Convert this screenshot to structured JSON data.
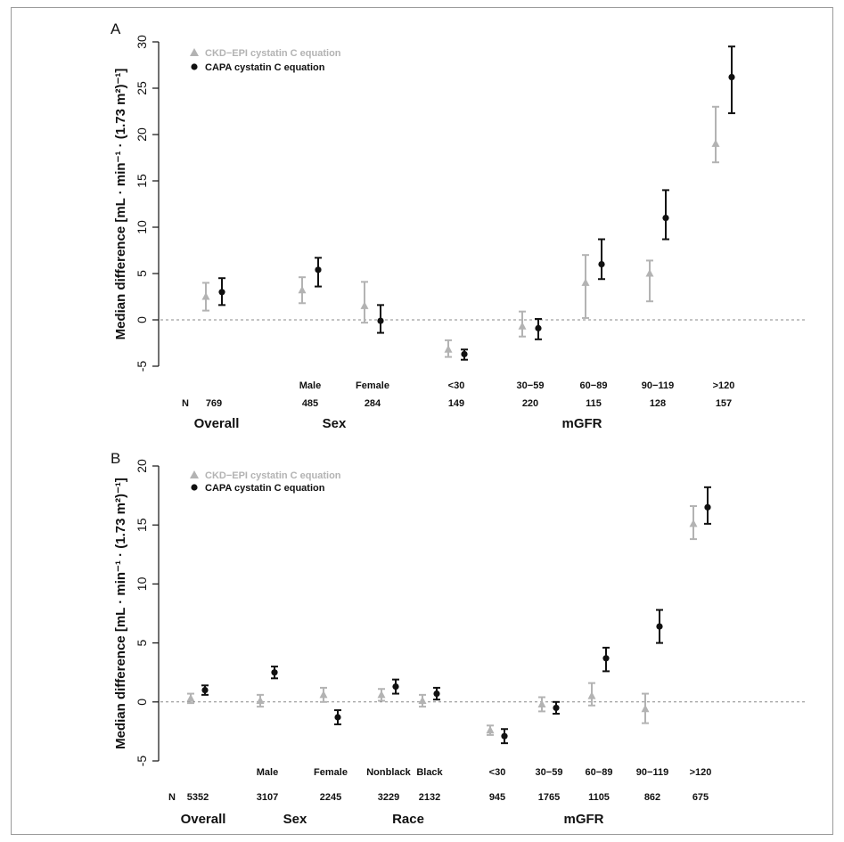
{
  "figure": {
    "colors": {
      "ckd": "#b3b3b3",
      "capa": "#111111",
      "refline": "#888888"
    }
  },
  "chart_data": [
    {
      "type": "scatter",
      "panel": "A",
      "ylabel": "Median difference [mL · min⁻¹ · (1.73 m²)⁻¹]",
      "ylim": [
        -5,
        30
      ],
      "yticks": [
        -5,
        0,
        5,
        10,
        15,
        20,
        25,
        30
      ],
      "reference_line": 0,
      "legend": {
        "placement": "top-left",
        "entries": [
          "CKD−EPI cystatin C equation",
          "CAPA cystatin C equation"
        ]
      },
      "n_prefix": "N",
      "categories": [
        {
          "label": "",
          "n": "769"
        },
        {
          "label": "Male",
          "n": "485"
        },
        {
          "label": "Female",
          "n": "284"
        },
        {
          "label": "<30",
          "n": "149"
        },
        {
          "label": "30−59",
          "n": "220"
        },
        {
          "label": "60−89",
          "n": "115"
        },
        {
          "label": "90−119",
          "n": "128"
        },
        {
          "label": ">120",
          "n": "157"
        }
      ],
      "groups": [
        {
          "label": "Overall",
          "from": 0,
          "to": 0
        },
        {
          "label": "Sex",
          "from": 1,
          "to": 2
        },
        {
          "label": "mGFR",
          "from": 3,
          "to": 7
        }
      ],
      "series": [
        {
          "name": "CKD−EPI cystatin C equation",
          "marker": "triangle",
          "values": [
            2.5,
            3.2,
            1.5,
            -3.2,
            -0.7,
            4.0,
            5.0,
            19.0
          ],
          "lower": [
            1.0,
            1.8,
            -0.3,
            -4.0,
            -1.8,
            0.2,
            2.0,
            17.0
          ],
          "upper": [
            4.0,
            4.6,
            4.1,
            -2.2,
            0.9,
            7.0,
            6.4,
            23.0
          ]
        },
        {
          "name": "CAPA cystatin C equation",
          "marker": "circle",
          "values": [
            3.0,
            5.4,
            -0.1,
            -3.7,
            -0.9,
            6.0,
            11.0,
            26.2
          ],
          "lower": [
            1.6,
            3.6,
            -1.4,
            -4.3,
            -2.1,
            4.4,
            8.7,
            22.3
          ],
          "upper": [
            4.5,
            6.7,
            1.6,
            -3.2,
            0.1,
            8.7,
            14.0,
            29.5
          ]
        }
      ]
    },
    {
      "type": "scatter",
      "panel": "B",
      "ylabel": "Median difference [mL · min⁻¹ · (1.73 m²)⁻¹]",
      "ylim": [
        -5,
        20
      ],
      "yticks": [
        -5,
        0,
        5,
        10,
        15,
        20
      ],
      "reference_line": 0,
      "legend": {
        "placement": "top-left",
        "entries": [
          "CKD−EPI cystatin C equation",
          "CAPA cystatin C equation"
        ]
      },
      "n_prefix": "N",
      "categories": [
        {
          "label": "",
          "n": "5352"
        },
        {
          "label": "Male",
          "n": "3107"
        },
        {
          "label": "Female",
          "n": "2245"
        },
        {
          "label": "Nonblack",
          "n": "3229"
        },
        {
          "label": "Black",
          "n": "2132"
        },
        {
          "label": "<30",
          "n": "945"
        },
        {
          "label": "30−59",
          "n": "1765"
        },
        {
          "label": "60−89",
          "n": "1105"
        },
        {
          "label": "90−119",
          "n": "862"
        },
        {
          "label": ">120",
          "n": "675"
        }
      ],
      "groups": [
        {
          "label": "Overall",
          "from": 0,
          "to": 0
        },
        {
          "label": "Sex",
          "from": 1,
          "to": 2
        },
        {
          "label": "Race",
          "from": 3,
          "to": 4
        },
        {
          "label": "mGFR",
          "from": 5,
          "to": 9
        }
      ],
      "series": [
        {
          "name": "CKD−EPI cystatin C equation",
          "marker": "triangle",
          "values": [
            0.3,
            0.1,
            0.6,
            0.6,
            0.1,
            -2.4,
            -0.2,
            0.5,
            -0.6,
            15.1
          ],
          "lower": [
            -0.1,
            -0.4,
            0.0,
            0.1,
            -0.4,
            -2.8,
            -0.8,
            -0.3,
            -1.8,
            13.8
          ],
          "upper": [
            0.7,
            0.6,
            1.2,
            1.1,
            0.6,
            -2.0,
            0.4,
            1.6,
            0.7,
            16.6
          ]
        },
        {
          "name": "CAPA cystatin C equation",
          "marker": "circle",
          "values": [
            1.0,
            2.5,
            -1.3,
            1.3,
            0.7,
            -2.9,
            -0.5,
            3.7,
            6.4,
            16.5
          ],
          "lower": [
            0.6,
            2.0,
            -1.9,
            0.7,
            0.2,
            -3.5,
            -1.0,
            2.6,
            5.0,
            15.1
          ],
          "upper": [
            1.4,
            3.0,
            -0.7,
            1.9,
            1.2,
            -2.3,
            0.0,
            4.6,
            7.8,
            18.2
          ]
        }
      ]
    }
  ]
}
